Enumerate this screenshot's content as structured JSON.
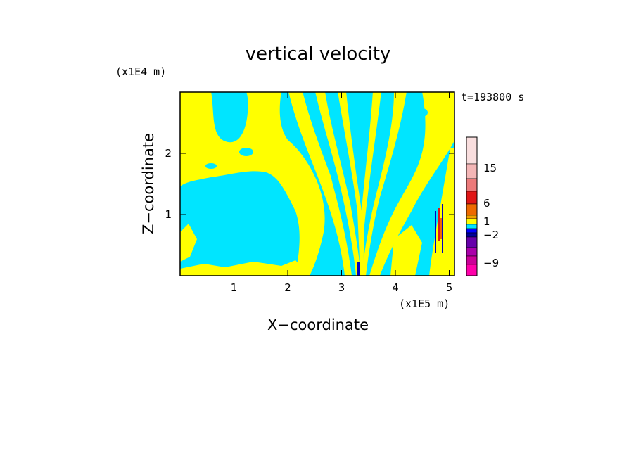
{
  "chart_data": {
    "type": "heatmap",
    "title": "vertical velocity",
    "xlabel": "X−coordinate",
    "ylabel": "Z−coordinate",
    "x_scale_label": "(x1E5 m)",
    "y_scale_label": "(x1E4 m)",
    "time_label": "t=193800 s",
    "xlim": [
      0,
      5.1
    ],
    "ylim": [
      0,
      3.0
    ],
    "x_ticks": [
      "1",
      "2",
      "3",
      "4",
      "5"
    ],
    "y_ticks": [
      "1",
      "2"
    ],
    "colorbar": {
      "labels": [
        "15",
        "6",
        "1",
        "−2",
        "−9"
      ],
      "colors": [
        "#f9dede",
        "#f4b6b6",
        "#ec7a7a",
        "#e01616",
        "#ee6a00",
        "#f3a000",
        "#ffff00",
        "#00e5ff",
        "#0000ff",
        "#000099",
        "#6600aa",
        "#aa00aa",
        "#cc0099",
        "#ff00aa"
      ]
    },
    "field_colors": {
      "positive": "#ffff00",
      "negative": "#00e5ff",
      "strong_up": "#e01616",
      "strong_down": "#0000c0"
    }
  }
}
